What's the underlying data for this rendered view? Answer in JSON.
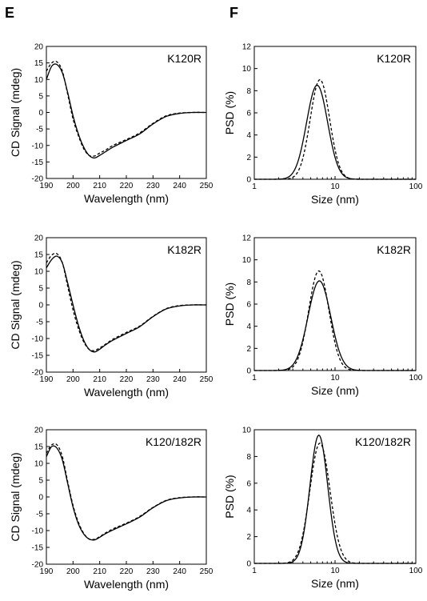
{
  "panels": [
    {
      "letter": "E"
    },
    {
      "letter": "F"
    }
  ],
  "chart_data": [
    {
      "type": "line",
      "panel": "E",
      "label": "K120R",
      "xlabel": "Wavelength (nm)",
      "ylabel": "CD Signal (mdeg)",
      "xlim": [
        190,
        250
      ],
      "ylim": [
        -20,
        20
      ],
      "xticks": [
        190,
        200,
        210,
        220,
        230,
        240,
        250
      ],
      "yticks": [
        -20,
        -15,
        -10,
        -5,
        0,
        5,
        10,
        15,
        20
      ],
      "x": [
        190,
        192,
        194,
        196,
        198,
        200,
        202,
        204,
        206,
        208,
        210,
        212,
        215,
        220,
        225,
        230,
        235,
        240,
        245,
        250
      ],
      "series": [
        {
          "style": "solid",
          "values": [
            10,
            14,
            14.5,
            12,
            6,
            -1,
            -6.5,
            -10.5,
            -13,
            -13.8,
            -13,
            -12,
            -10.5,
            -8.5,
            -6.5,
            -3.5,
            -1.2,
            -0.3,
            0,
            0
          ]
        },
        {
          "style": "dashed",
          "values": [
            12.5,
            15,
            15.3,
            12.5,
            5.5,
            -2,
            -7,
            -11,
            -13,
            -13.2,
            -12.3,
            -11.5,
            -10,
            -8.2,
            -6.2,
            -3.3,
            -1,
            -0.2,
            0,
            0
          ]
        }
      ]
    },
    {
      "type": "line",
      "panel": "F",
      "label": "K120R",
      "xlabel": "Size (nm)",
      "ylabel": "PSD (%)",
      "xscale": "log",
      "xlim": [
        1,
        100
      ],
      "ylim": [
        0,
        12
      ],
      "xticks": [
        1,
        10,
        100
      ],
      "yticks": [
        0,
        2,
        4,
        6,
        8,
        10,
        12
      ],
      "series": [
        {
          "style": "solid",
          "peak": 6.0,
          "height": 8.5,
          "width": 0.13
        },
        {
          "style": "dashed",
          "peak": 6.5,
          "height": 9.0,
          "width": 0.12
        }
      ]
    },
    {
      "type": "line",
      "panel": "E",
      "label": "K182R",
      "xlabel": "Wavelength (nm)",
      "ylabel": "CD Signal (mdeg)",
      "xlim": [
        190,
        250
      ],
      "ylim": [
        -20,
        20
      ],
      "xticks": [
        190,
        200,
        210,
        220,
        230,
        240,
        250
      ],
      "yticks": [
        -20,
        -15,
        -10,
        -5,
        0,
        5,
        10,
        15,
        20
      ],
      "x": [
        190,
        192,
        194,
        196,
        198,
        200,
        202,
        204,
        206,
        208,
        210,
        212,
        215,
        220,
        225,
        230,
        235,
        240,
        245,
        250
      ],
      "series": [
        {
          "style": "solid",
          "values": [
            11,
            13.5,
            14.5,
            12.5,
            6.5,
            0,
            -6,
            -10.5,
            -13.2,
            -14,
            -13.2,
            -12,
            -10.5,
            -8.5,
            -6.5,
            -3.5,
            -1.2,
            -0.3,
            0,
            0
          ]
        },
        {
          "style": "dashed",
          "values": [
            12.5,
            14.8,
            15.2,
            12.5,
            5.5,
            -1.5,
            -7,
            -11,
            -13.2,
            -13.6,
            -12.8,
            -11.8,
            -10.2,
            -8.2,
            -6.3,
            -3.4,
            -1.1,
            -0.2,
            0,
            0
          ]
        }
      ]
    },
    {
      "type": "line",
      "panel": "F",
      "label": "K182R",
      "xlabel": "Size (nm)",
      "ylabel": "PSD (%)",
      "xscale": "log",
      "xlim": [
        1,
        100
      ],
      "ylim": [
        0,
        12
      ],
      "xticks": [
        1,
        10,
        100
      ],
      "yticks": [
        0,
        2,
        4,
        6,
        8,
        10,
        12
      ],
      "series": [
        {
          "style": "solid",
          "peak": 6.4,
          "height": 8.1,
          "width": 0.14
        },
        {
          "style": "dashed",
          "peak": 6.3,
          "height": 9.0,
          "width": 0.125
        }
      ]
    },
    {
      "type": "line",
      "panel": "E",
      "label": "K120/182R",
      "xlabel": "Wavelength (nm)",
      "ylabel": "CD Signal (mdeg)",
      "xlim": [
        190,
        250
      ],
      "ylim": [
        -20,
        20
      ],
      "xticks": [
        190,
        200,
        210,
        220,
        230,
        240,
        250
      ],
      "yticks": [
        -20,
        -15,
        -10,
        -5,
        0,
        5,
        10,
        15,
        20
      ],
      "x": [
        190,
        192,
        194,
        196,
        198,
        200,
        202,
        204,
        206,
        208,
        210,
        212,
        215,
        220,
        225,
        230,
        235,
        240,
        245,
        250
      ],
      "series": [
        {
          "style": "solid",
          "values": [
            12,
            15,
            14.5,
            11,
            4,
            -3,
            -8,
            -11,
            -12.5,
            -12.8,
            -12,
            -11,
            -9.8,
            -8,
            -6,
            -3.2,
            -1.1,
            -0.3,
            0,
            0
          ]
        },
        {
          "style": "dashed",
          "values": [
            13,
            15.5,
            15.5,
            12,
            4.5,
            -2.5,
            -7.5,
            -10.8,
            -12.5,
            -12.6,
            -11.8,
            -10.8,
            -9.5,
            -7.8,
            -5.8,
            -3.1,
            -1,
            -0.2,
            0,
            0
          ]
        }
      ]
    },
    {
      "type": "line",
      "panel": "F",
      "label": "K120/182R",
      "xlabel": "Size (nm)",
      "ylabel": "PSD (%)",
      "xscale": "log",
      "xlim": [
        1,
        100
      ],
      "ylim": [
        0,
        10
      ],
      "xticks": [
        1,
        10,
        100
      ],
      "yticks": [
        0,
        2,
        4,
        6,
        8,
        10
      ],
      "series": [
        {
          "style": "solid",
          "peak": 6.3,
          "height": 9.6,
          "width": 0.11
        },
        {
          "style": "dashed",
          "peak": 6.5,
          "height": 9.0,
          "width": 0.125
        }
      ]
    }
  ]
}
